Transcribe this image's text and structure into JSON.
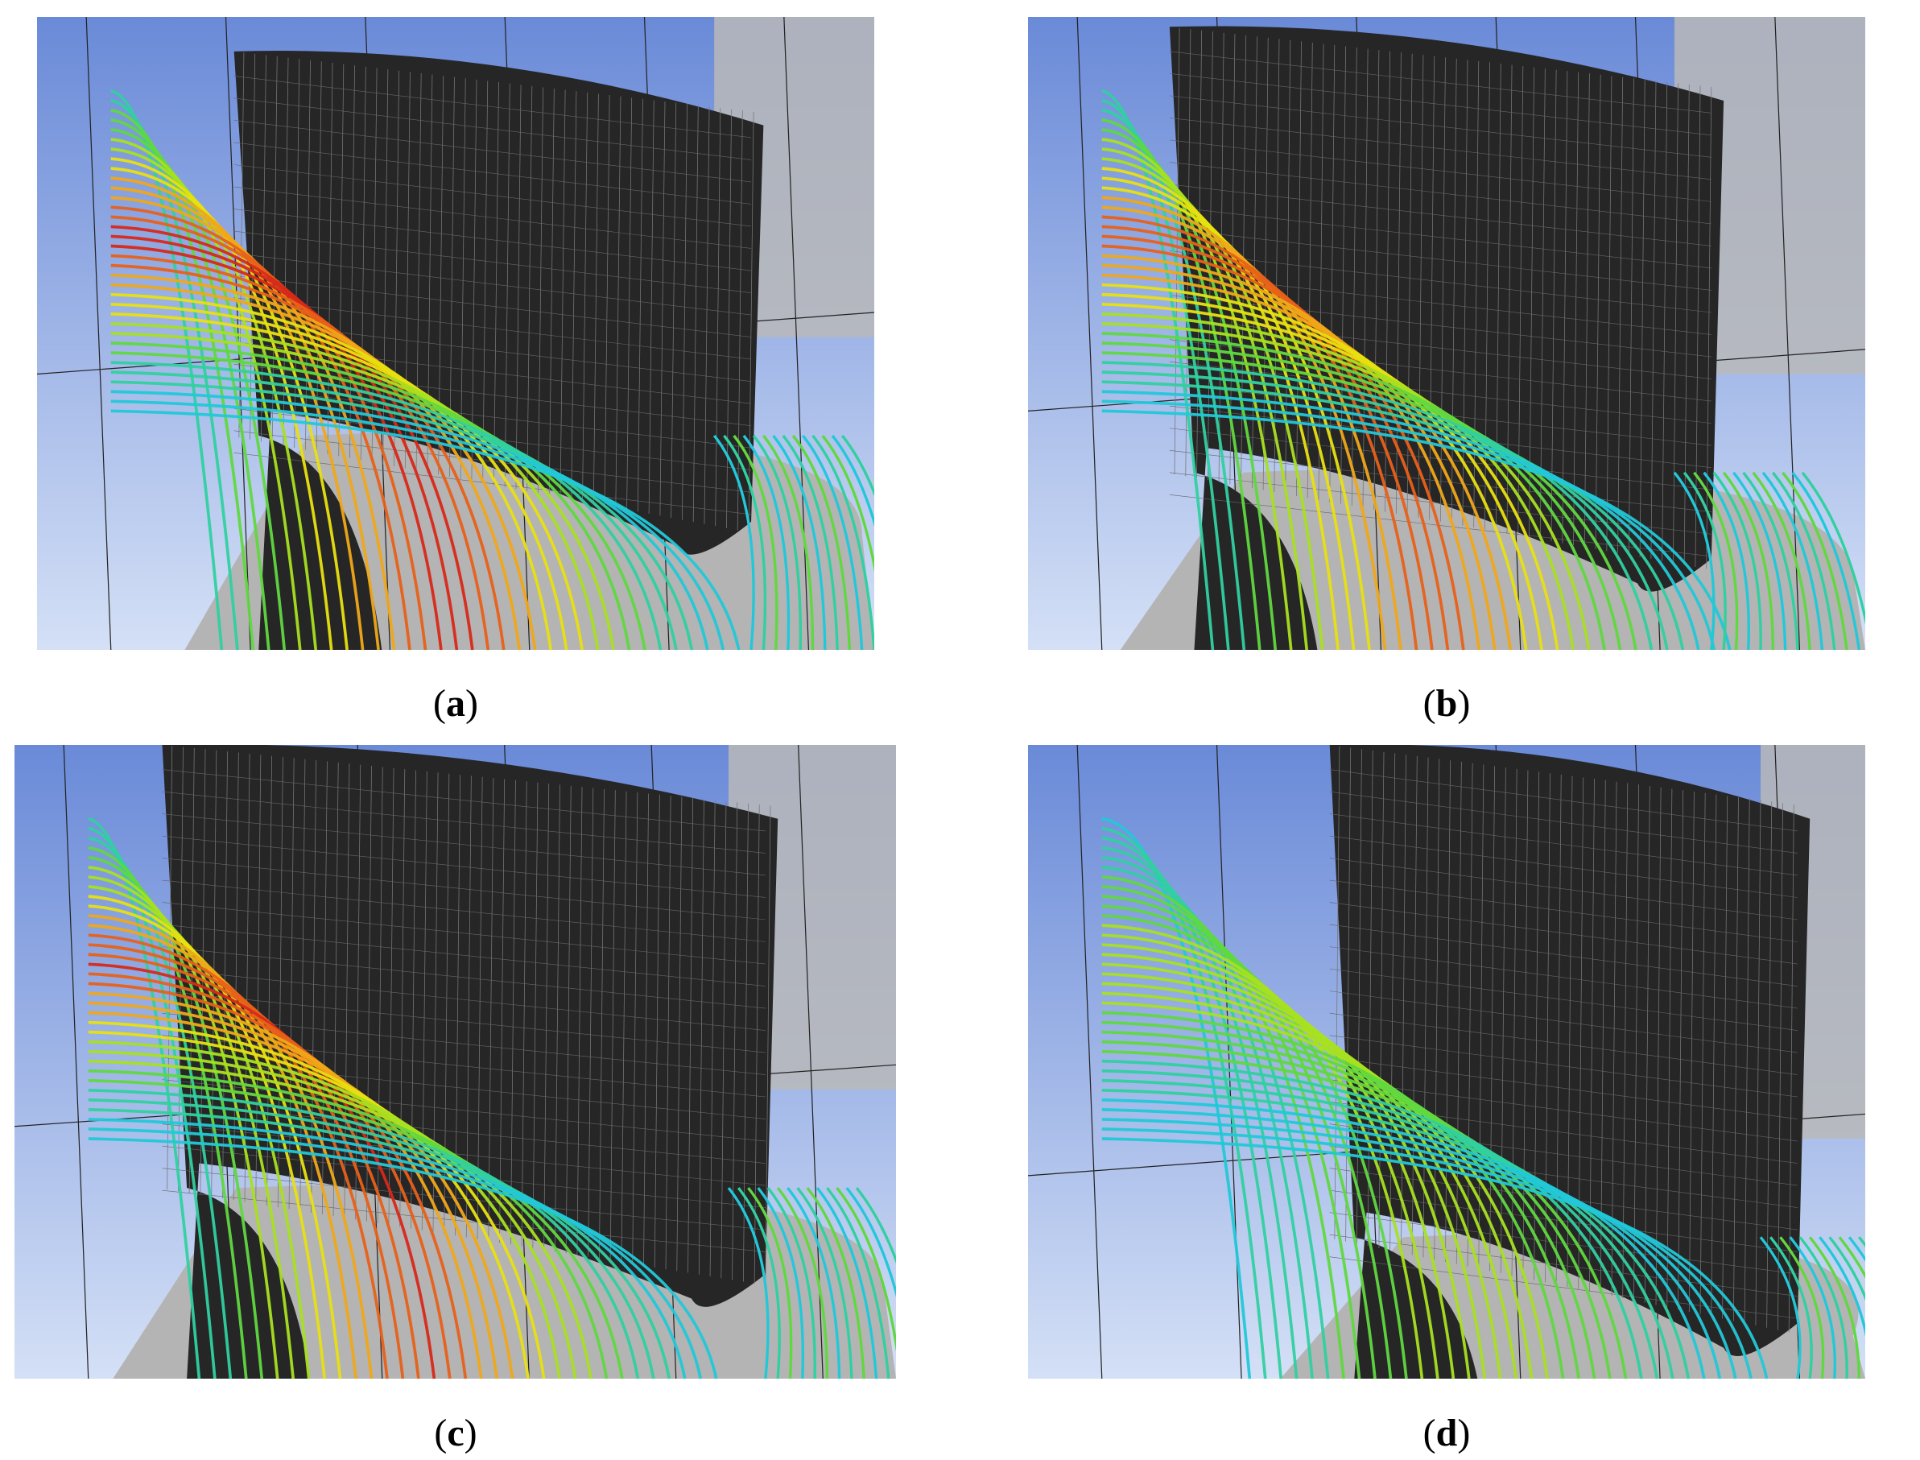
{
  "panels": [
    {
      "caption": [
        "(",
        "a",
        ")"
      ]
    },
    {
      "caption": [
        "(",
        "b",
        ")"
      ]
    },
    {
      "caption": [
        "(",
        "c",
        ")"
      ]
    },
    {
      "caption": [
        "(",
        "d",
        ")"
      ]
    }
  ]
}
